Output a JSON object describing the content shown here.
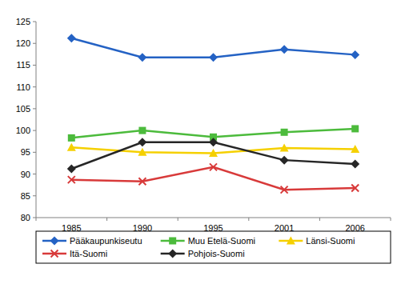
{
  "chart_data": {
    "type": "line",
    "categories": [
      "1985",
      "1990",
      "1995",
      "2001",
      "2006"
    ],
    "series": [
      {
        "name": "Pääkaupunkiseutu",
        "color": "#2462c4",
        "marker": "diamond",
        "values": [
          121.2,
          116.8,
          116.8,
          118.6,
          117.4
        ]
      },
      {
        "name": "Muu Etelä-Suomi",
        "color": "#4cbb3c",
        "marker": "square",
        "values": [
          98.3,
          100.0,
          98.5,
          99.6,
          100.4
        ]
      },
      {
        "name": "Länsi-Suomi",
        "color": "#f5d000",
        "marker": "triangle",
        "values": [
          96.1,
          95.0,
          94.8,
          96.0,
          95.7
        ]
      },
      {
        "name": "Itä-Suomi",
        "color": "#d83a3a",
        "marker": "x",
        "values": [
          88.7,
          88.3,
          91.6,
          86.4,
          86.8
        ]
      },
      {
        "name": "Pohjois-Suomi",
        "color": "#262626",
        "marker": "diamond",
        "values": [
          91.2,
          97.3,
          97.3,
          93.2,
          92.3
        ]
      }
    ],
    "ylim": [
      80,
      125
    ],
    "yticks": [
      80,
      85,
      90,
      95,
      100,
      105,
      110,
      115,
      120,
      125
    ],
    "grid": false,
    "legend": "bottom"
  }
}
